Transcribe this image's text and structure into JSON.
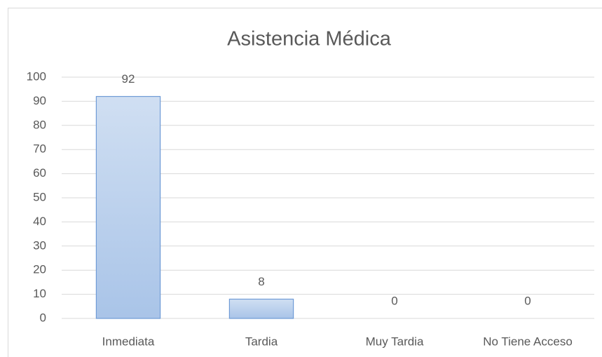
{
  "chart_data": {
    "type": "bar",
    "title": "Asistencia Médica",
    "categories": [
      "Inmediata",
      "Tardia",
      "Muy Tardia",
      "No Tiene Acceso"
    ],
    "values": [
      92,
      8,
      0,
      0
    ],
    "color": "#9dbde6",
    "ylim": [
      0,
      100
    ],
    "yticks": [
      0,
      10,
      20,
      30,
      40,
      50,
      60,
      70,
      80,
      90,
      100
    ],
    "grid": true
  }
}
